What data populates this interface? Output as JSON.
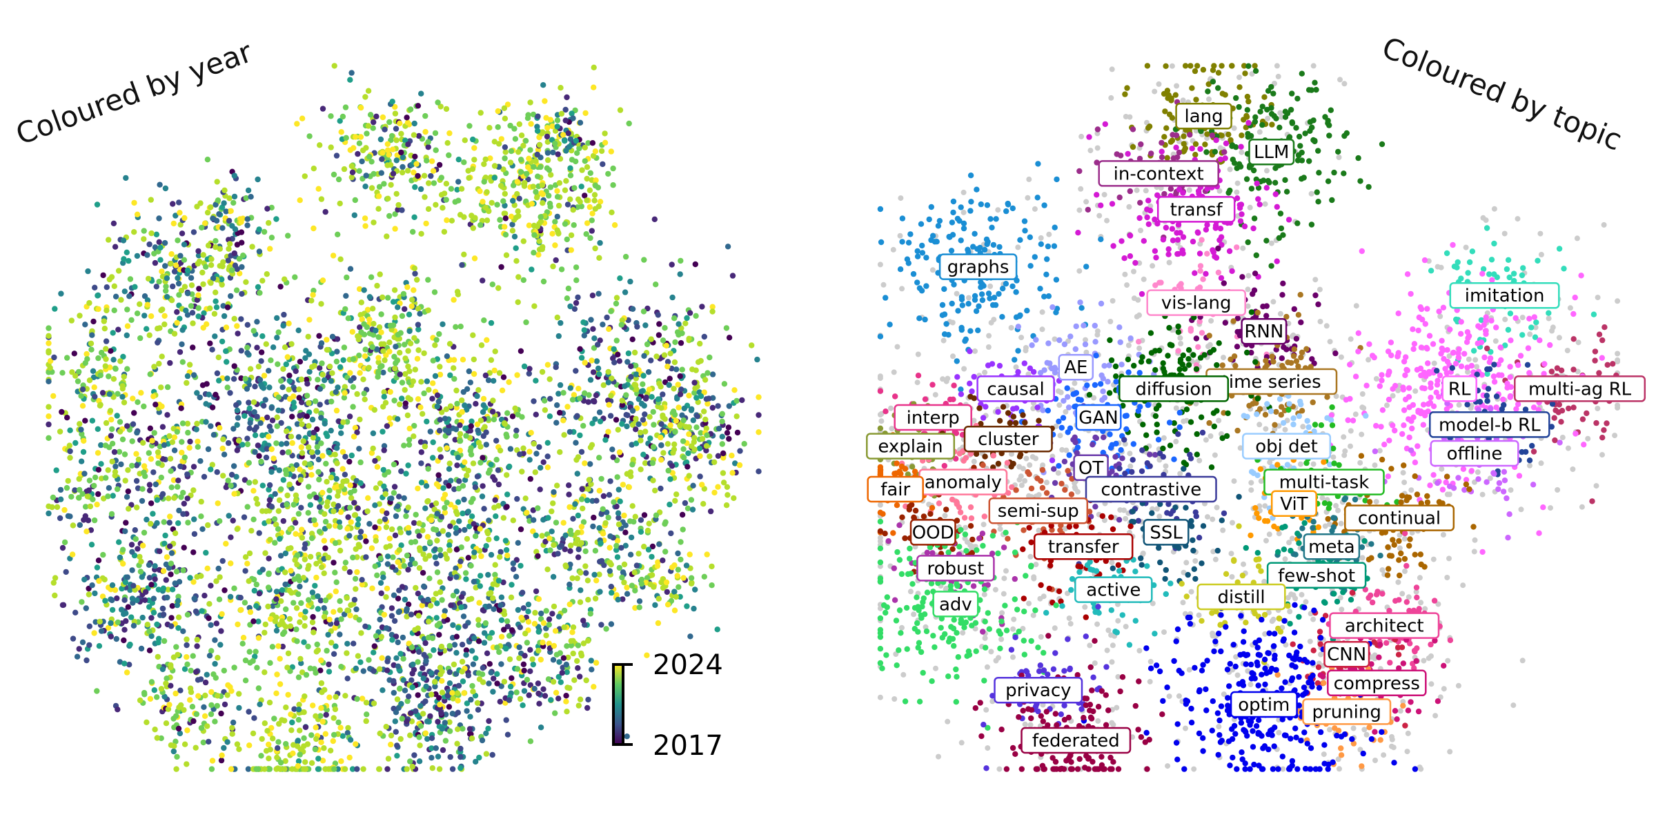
{
  "chart_data": [
    {
      "type": "scatter",
      "title": "Coloured by year",
      "xlabel": "",
      "ylabel": "",
      "grid": false,
      "legend": "colorbar bottom-right",
      "colormap": "viridis",
      "colorbar": {
        "min": 2017,
        "max": 2024,
        "min_label": "2017",
        "max_label": "2024"
      },
      "xlim": [
        0,
        100
      ],
      "ylim": [
        0,
        100
      ],
      "series": [
        {
          "cluster": "A",
          "x": 68,
          "y": 82,
          "spread": 6,
          "n": 360,
          "year_bias": 0.85
        },
        {
          "cluster": "B",
          "x": 48,
          "y": 86,
          "spread": 5,
          "n": 220,
          "year_bias": 0.7
        },
        {
          "cluster": "C",
          "x": 20,
          "y": 70,
          "spread": 6,
          "n": 280,
          "year_bias": 0.4
        },
        {
          "cluster": "D",
          "x": 8,
          "y": 56,
          "spread": 5,
          "n": 160,
          "year_bias": 0.75
        },
        {
          "cluster": "E",
          "x": 33,
          "y": 52,
          "spread": 6,
          "n": 320,
          "year_bias": 0.2
        },
        {
          "cluster": "F",
          "x": 48,
          "y": 60,
          "spread": 6,
          "n": 280,
          "year_bias": 0.75
        },
        {
          "cluster": "G",
          "x": 60,
          "y": 48,
          "spread": 5,
          "n": 200,
          "year_bias": 0.55
        },
        {
          "cluster": "H",
          "x": 82,
          "y": 54,
          "spread": 7,
          "n": 420,
          "year_bias": 0.45
        },
        {
          "cluster": "I",
          "x": 90,
          "y": 47,
          "spread": 4,
          "n": 140,
          "year_bias": 0.55
        },
        {
          "cluster": "J",
          "x": 18,
          "y": 44,
          "spread": 5,
          "n": 180,
          "year_bias": 0.55
        },
        {
          "cluster": "K",
          "x": 38,
          "y": 38,
          "spread": 6,
          "n": 280,
          "year_bias": 0.65
        },
        {
          "cluster": "L",
          "x": 56,
          "y": 34,
          "spread": 6,
          "n": 260,
          "year_bias": 0.5
        },
        {
          "cluster": "M",
          "x": 76,
          "y": 33,
          "spread": 5,
          "n": 220,
          "year_bias": 0.55
        },
        {
          "cluster": "N",
          "x": 6,
          "y": 40,
          "spread": 3,
          "n": 70,
          "year_bias": 0.6
        },
        {
          "cluster": "O",
          "x": 14,
          "y": 25,
          "spread": 5,
          "n": 260,
          "year_bias": 0.25
        },
        {
          "cluster": "P",
          "x": 34,
          "y": 24,
          "spread": 5,
          "n": 200,
          "year_bias": 0.7
        },
        {
          "cluster": "Q",
          "x": 54,
          "y": 18,
          "spread": 7,
          "n": 380,
          "year_bias": 0.3
        },
        {
          "cluster": "R",
          "x": 70,
          "y": 17,
          "spread": 4,
          "n": 150,
          "year_bias": 0.5
        },
        {
          "cluster": "S",
          "x": 20,
          "y": 11,
          "spread": 4,
          "n": 120,
          "year_bias": 0.75
        },
        {
          "cluster": "T",
          "x": 35,
          "y": 5,
          "spread": 5,
          "n": 200,
          "year_bias": 0.8
        },
        {
          "cluster": "U",
          "x": 54,
          "y": 7,
          "spread": 4,
          "n": 140,
          "year_bias": 0.45
        },
        {
          "cluster": "V",
          "x": 72,
          "y": 90,
          "spread": 2,
          "n": 50,
          "year_bias": 0.35
        },
        {
          "cluster": "W",
          "x": 86,
          "y": 28,
          "spread": 3,
          "n": 80,
          "year_bias": 0.75
        },
        {
          "cluster": "X",
          "x": 27,
          "y": 78,
          "spread": 3,
          "n": 60,
          "year_bias": 0.5
        }
      ]
    },
    {
      "type": "scatter",
      "title": "Coloured by topic",
      "xlabel": "",
      "ylabel": "",
      "grid": false,
      "legend": "none",
      "xlim": [
        0,
        100
      ],
      "ylim": [
        0,
        100
      ],
      "background_color": "#cccccc",
      "series": [
        {
          "name": "lang",
          "x": 44,
          "y": 92,
          "color": "#808000",
          "n": 120
        },
        {
          "name": "LLM",
          "x": 53,
          "y": 87,
          "color": "#1a7a1a",
          "n": 160
        },
        {
          "name": "in-context",
          "x": 38,
          "y": 84,
          "color": "#9b2d8b",
          "n": 60
        },
        {
          "name": "transf",
          "x": 43,
          "y": 79,
          "color": "#d41ad4",
          "n": 150
        },
        {
          "name": "graphs",
          "x": 14,
          "y": 71,
          "color": "#1a8ed4",
          "n": 200
        },
        {
          "name": "imitation",
          "x": 84,
          "y": 67,
          "color": "#33ddbb",
          "n": 70
        },
        {
          "name": "vis-lang",
          "x": 43,
          "y": 66,
          "color": "#ff88cc",
          "n": 60
        },
        {
          "name": "RNN",
          "x": 52,
          "y": 62,
          "color": "#6a006a",
          "n": 70
        },
        {
          "name": "AE",
          "x": 27,
          "y": 57,
          "color": "#9999ff",
          "n": 70
        },
        {
          "name": "multi-ag RL",
          "x": 94,
          "y": 54,
          "color": "#bb3366",
          "n": 70
        },
        {
          "name": "time series",
          "x": 53,
          "y": 55,
          "color": "#aa7722",
          "n": 90
        },
        {
          "name": "causal",
          "x": 19,
          "y": 54,
          "color": "#9933ff",
          "n": 50
        },
        {
          "name": "diffusion",
          "x": 40,
          "y": 54,
          "color": "#006600",
          "n": 130
        },
        {
          "name": "RL",
          "x": 78,
          "y": 54,
          "color": "#ff66ff",
          "n": 330
        },
        {
          "name": "interp",
          "x": 8,
          "y": 50,
          "color": "#e8338a",
          "n": 40
        },
        {
          "name": "GAN",
          "x": 30,
          "y": 50,
          "color": "#1a66ff",
          "n": 90
        },
        {
          "name": "model-b RL",
          "x": 82,
          "y": 49,
          "color": "#224499",
          "n": 60
        },
        {
          "name": "explain",
          "x": 5,
          "y": 46,
          "color": "#889933",
          "n": 40
        },
        {
          "name": "cluster",
          "x": 18,
          "y": 47,
          "color": "#6a2a00",
          "n": 50
        },
        {
          "name": "obj det",
          "x": 55,
          "y": 46,
          "color": "#99ccff",
          "n": 60
        },
        {
          "name": "offline",
          "x": 80,
          "y": 45,
          "color": "#cc66ff",
          "n": 60
        },
        {
          "name": "OT",
          "x": 29,
          "y": 43,
          "color": "#6a3aaa",
          "n": 40
        },
        {
          "name": "anomaly",
          "x": 12,
          "y": 41,
          "color": "#ff7799",
          "n": 50
        },
        {
          "name": "fair",
          "x": 3,
          "y": 40,
          "color": "#ee6600",
          "n": 40
        },
        {
          "name": "multi-task",
          "x": 60,
          "y": 41,
          "color": "#22bb22",
          "n": 60
        },
        {
          "name": "contrastive",
          "x": 37,
          "y": 40,
          "color": "#3a3a9a",
          "n": 60
        },
        {
          "name": "semi-sup",
          "x": 22,
          "y": 37,
          "color": "#cc5533",
          "n": 60
        },
        {
          "name": "ViT",
          "x": 56,
          "y": 38,
          "color": "#ff9900",
          "n": 50
        },
        {
          "name": "OOD",
          "x": 8,
          "y": 34,
          "color": "#992200",
          "n": 40
        },
        {
          "name": "SSL",
          "x": 39,
          "y": 34,
          "color": "#115577",
          "n": 50
        },
        {
          "name": "continual",
          "x": 70,
          "y": 36,
          "color": "#aa6600",
          "n": 80
        },
        {
          "name": "meta",
          "x": 61,
          "y": 32,
          "color": "#227788",
          "n": 60
        },
        {
          "name": "transfer",
          "x": 28,
          "y": 32,
          "color": "#aa0000",
          "n": 60
        },
        {
          "name": "robust",
          "x": 11,
          "y": 29,
          "color": "#aa33aa",
          "n": 50
        },
        {
          "name": "few-shot",
          "x": 59,
          "y": 28,
          "color": "#009977",
          "n": 60
        },
        {
          "name": "active",
          "x": 32,
          "y": 26,
          "color": "#22bbbb",
          "n": 50
        },
        {
          "name": "adv",
          "x": 11,
          "y": 24,
          "color": "#33dd66",
          "n": 200
        },
        {
          "name": "distill",
          "x": 49,
          "y": 25,
          "color": "#cccc22",
          "n": 50
        },
        {
          "name": "architect",
          "x": 68,
          "y": 21,
          "color": "#ee4499",
          "n": 70
        },
        {
          "name": "CNN",
          "x": 63,
          "y": 17,
          "color": "#cc2244",
          "n": 60
        },
        {
          "name": "compress",
          "x": 67,
          "y": 13,
          "color": "#cc1177",
          "n": 50
        },
        {
          "name": "privacy",
          "x": 22,
          "y": 12,
          "color": "#5533dd",
          "n": 60
        },
        {
          "name": "pruning",
          "x": 63,
          "y": 9,
          "color": "#ff9944",
          "n": 50
        },
        {
          "name": "optim",
          "x": 52,
          "y": 10,
          "color": "#0000ee",
          "n": 300
        },
        {
          "name": "federated",
          "x": 27,
          "y": 5,
          "color": "#990044",
          "n": 150
        }
      ]
    }
  ]
}
